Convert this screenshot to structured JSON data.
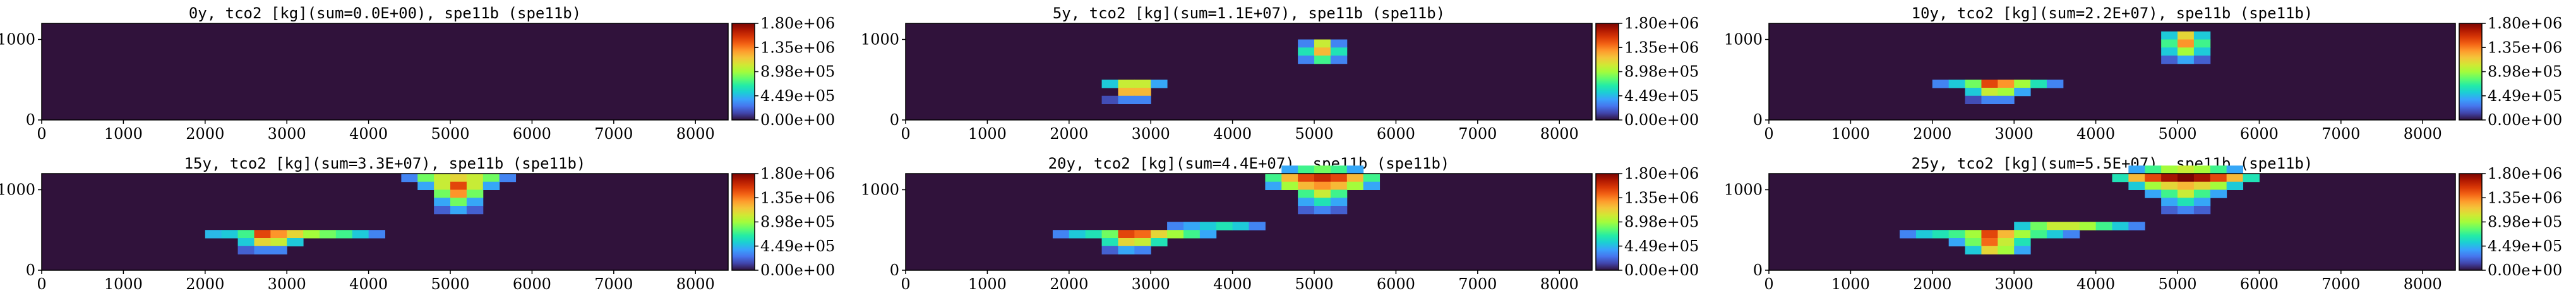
{
  "figure": {
    "colorbar": {
      "colormap": "turbo",
      "vmin": 0,
      "vmax": 1800000,
      "tick_labels": [
        "0.00e+00",
        "4.49e+05",
        "8.98e+05",
        "1.35e+06",
        "1.80e+06"
      ]
    },
    "x_tick_labels": [
      "0",
      "1000",
      "2000",
      "3000",
      "4000",
      "5000",
      "6000",
      "7000",
      "8000"
    ],
    "y_tick_labels": [
      "0",
      "1000"
    ],
    "background_color": "#30123b"
  },
  "chart_data": [
    {
      "type": "heatmap",
      "title": "0y, tco2 [kg](sum=0.0E+00), spe11b (spe11b)",
      "xlim": [
        0,
        8400
      ],
      "ylim": [
        0,
        1200
      ],
      "cell": [
        200,
        100
      ],
      "cells": []
    },
    {
      "type": "heatmap",
      "title": "5y, tco2 [kg](sum=1.1E+07), spe11b (spe11b)",
      "xlim": [
        0,
        8400
      ],
      "ylim": [
        0,
        1200
      ],
      "cell": [
        200,
        100
      ],
      "cells": [
        {
          "x": 2400,
          "y": 400,
          "v": 500000
        },
        {
          "x": 2600,
          "y": 400,
          "v": 1000000
        },
        {
          "x": 2800,
          "y": 400,
          "v": 1000000
        },
        {
          "x": 3000,
          "y": 400,
          "v": 400000
        },
        {
          "x": 2600,
          "y": 300,
          "v": 1200000
        },
        {
          "x": 2800,
          "y": 300,
          "v": 1200000
        },
        {
          "x": 2400,
          "y": 200,
          "v": 150000
        },
        {
          "x": 2600,
          "y": 200,
          "v": 300000
        },
        {
          "x": 2800,
          "y": 200,
          "v": 300000
        },
        {
          "x": 4800,
          "y": 900,
          "v": 300000
        },
        {
          "x": 5000,
          "y": 900,
          "v": 1000000
        },
        {
          "x": 5200,
          "y": 900,
          "v": 300000
        },
        {
          "x": 4800,
          "y": 800,
          "v": 600000
        },
        {
          "x": 5000,
          "y": 800,
          "v": 1200000
        },
        {
          "x": 5200,
          "y": 800,
          "v": 600000
        },
        {
          "x": 4800,
          "y": 700,
          "v": 300000
        },
        {
          "x": 5000,
          "y": 700,
          "v": 700000
        },
        {
          "x": 5200,
          "y": 700,
          "v": 300000
        }
      ]
    },
    {
      "type": "heatmap",
      "title": "10y, tco2 [kg](sum=2.2E+07), spe11b (spe11b)",
      "xlim": [
        0,
        8400
      ],
      "ylim": [
        0,
        1200
      ],
      "cell": [
        200,
        100
      ],
      "cells": [
        {
          "x": 2000,
          "y": 400,
          "v": 300000
        },
        {
          "x": 2200,
          "y": 400,
          "v": 500000
        },
        {
          "x": 2400,
          "y": 400,
          "v": 800000
        },
        {
          "x": 2600,
          "y": 400,
          "v": 1500000
        },
        {
          "x": 2800,
          "y": 400,
          "v": 1300000
        },
        {
          "x": 3000,
          "y": 400,
          "v": 900000
        },
        {
          "x": 3200,
          "y": 400,
          "v": 600000
        },
        {
          "x": 3400,
          "y": 400,
          "v": 300000
        },
        {
          "x": 2400,
          "y": 300,
          "v": 500000
        },
        {
          "x": 2600,
          "y": 300,
          "v": 1000000
        },
        {
          "x": 2800,
          "y": 300,
          "v": 900000
        },
        {
          "x": 3000,
          "y": 300,
          "v": 400000
        },
        {
          "x": 2400,
          "y": 200,
          "v": 150000
        },
        {
          "x": 2600,
          "y": 200,
          "v": 300000
        },
        {
          "x": 2800,
          "y": 200,
          "v": 300000
        },
        {
          "x": 4800,
          "y": 1000,
          "v": 500000
        },
        {
          "x": 5000,
          "y": 1000,
          "v": 1100000
        },
        {
          "x": 5200,
          "y": 1000,
          "v": 500000
        },
        {
          "x": 4800,
          "y": 900,
          "v": 700000
        },
        {
          "x": 5000,
          "y": 900,
          "v": 1300000
        },
        {
          "x": 5200,
          "y": 900,
          "v": 700000
        },
        {
          "x": 4800,
          "y": 800,
          "v": 500000
        },
        {
          "x": 5000,
          "y": 800,
          "v": 900000
        },
        {
          "x": 5200,
          "y": 800,
          "v": 500000
        },
        {
          "x": 4800,
          "y": 700,
          "v": 200000
        },
        {
          "x": 5000,
          "y": 700,
          "v": 400000
        },
        {
          "x": 5200,
          "y": 700,
          "v": 200000
        }
      ]
    },
    {
      "type": "heatmap",
      "title": "15y, tco2 [kg](sum=3.3E+07), spe11b (spe11b)",
      "xlim": [
        0,
        8400
      ],
      "ylim": [
        0,
        1200
      ],
      "cell": [
        200,
        100
      ],
      "cells": [
        {
          "x": 2000,
          "y": 400,
          "v": 450000
        },
        {
          "x": 2200,
          "y": 400,
          "v": 500000
        },
        {
          "x": 2400,
          "y": 400,
          "v": 700000
        },
        {
          "x": 2600,
          "y": 400,
          "v": 1500000
        },
        {
          "x": 2800,
          "y": 400,
          "v": 1300000
        },
        {
          "x": 3000,
          "y": 400,
          "v": 1100000
        },
        {
          "x": 3200,
          "y": 400,
          "v": 900000
        },
        {
          "x": 3400,
          "y": 400,
          "v": 800000
        },
        {
          "x": 3600,
          "y": 400,
          "v": 700000
        },
        {
          "x": 3800,
          "y": 400,
          "v": 500000
        },
        {
          "x": 4000,
          "y": 400,
          "v": 300000
        },
        {
          "x": 2400,
          "y": 300,
          "v": 500000
        },
        {
          "x": 2600,
          "y": 300,
          "v": 1100000
        },
        {
          "x": 2800,
          "y": 300,
          "v": 1000000
        },
        {
          "x": 3000,
          "y": 300,
          "v": 500000
        },
        {
          "x": 2400,
          "y": 200,
          "v": 200000
        },
        {
          "x": 2600,
          "y": 200,
          "v": 300000
        },
        {
          "x": 2800,
          "y": 200,
          "v": 300000
        },
        {
          "x": 4400,
          "y": 1100,
          "v": 300000
        },
        {
          "x": 4600,
          "y": 1100,
          "v": 800000
        },
        {
          "x": 4800,
          "y": 1100,
          "v": 1000000
        },
        {
          "x": 5000,
          "y": 1100,
          "v": 1100000
        },
        {
          "x": 5200,
          "y": 1100,
          "v": 1000000
        },
        {
          "x": 5400,
          "y": 1100,
          "v": 800000
        },
        {
          "x": 5600,
          "y": 1100,
          "v": 300000
        },
        {
          "x": 4600,
          "y": 1000,
          "v": 400000
        },
        {
          "x": 4800,
          "y": 1000,
          "v": 1000000
        },
        {
          "x": 5000,
          "y": 1000,
          "v": 1500000
        },
        {
          "x": 5200,
          "y": 1000,
          "v": 1000000
        },
        {
          "x": 5400,
          "y": 1000,
          "v": 400000
        },
        {
          "x": 4800,
          "y": 900,
          "v": 800000
        },
        {
          "x": 5000,
          "y": 900,
          "v": 1300000
        },
        {
          "x": 5200,
          "y": 900,
          "v": 800000
        },
        {
          "x": 4800,
          "y": 800,
          "v": 400000
        },
        {
          "x": 5000,
          "y": 800,
          "v": 800000
        },
        {
          "x": 5200,
          "y": 800,
          "v": 400000
        },
        {
          "x": 4800,
          "y": 700,
          "v": 200000
        },
        {
          "x": 5000,
          "y": 700,
          "v": 400000
        },
        {
          "x": 5200,
          "y": 700,
          "v": 200000
        }
      ]
    },
    {
      "type": "heatmap",
      "title": "20y, tco2 [kg](sum=4.4E+07), spe11b (spe11b)",
      "xlim": [
        0,
        8400
      ],
      "ylim": [
        0,
        1200
      ],
      "cell": [
        200,
        100
      ],
      "cells": [
        {
          "x": 3200,
          "y": 500,
          "v": 300000
        },
        {
          "x": 3400,
          "y": 500,
          "v": 400000
        },
        {
          "x": 3600,
          "y": 500,
          "v": 500000
        },
        {
          "x": 3800,
          "y": 500,
          "v": 600000
        },
        {
          "x": 4000,
          "y": 500,
          "v": 500000
        },
        {
          "x": 4200,
          "y": 500,
          "v": 300000
        },
        {
          "x": 1800,
          "y": 400,
          "v": 300000
        },
        {
          "x": 2000,
          "y": 400,
          "v": 500000
        },
        {
          "x": 2200,
          "y": 400,
          "v": 600000
        },
        {
          "x": 2400,
          "y": 400,
          "v": 800000
        },
        {
          "x": 2600,
          "y": 400,
          "v": 1500000
        },
        {
          "x": 2800,
          "y": 400,
          "v": 1400000
        },
        {
          "x": 3000,
          "y": 400,
          "v": 1100000
        },
        {
          "x": 3200,
          "y": 400,
          "v": 900000
        },
        {
          "x": 3400,
          "y": 400,
          "v": 700000
        },
        {
          "x": 3600,
          "y": 400,
          "v": 400000
        },
        {
          "x": 2400,
          "y": 300,
          "v": 600000
        },
        {
          "x": 2600,
          "y": 300,
          "v": 1100000
        },
        {
          "x": 2800,
          "y": 300,
          "v": 1000000
        },
        {
          "x": 3000,
          "y": 300,
          "v": 600000
        },
        {
          "x": 2400,
          "y": 200,
          "v": 200000
        },
        {
          "x": 2600,
          "y": 200,
          "v": 400000
        },
        {
          "x": 2800,
          "y": 200,
          "v": 300000
        },
        {
          "x": 4600,
          "y": 1200,
          "v": 400000
        },
        {
          "x": 4800,
          "y": 1200,
          "v": 700000
        },
        {
          "x": 5000,
          "y": 1200,
          "v": 800000
        },
        {
          "x": 5200,
          "y": 1200,
          "v": 700000
        },
        {
          "x": 5400,
          "y": 1200,
          "v": 400000
        },
        {
          "x": 4400,
          "y": 1100,
          "v": 700000
        },
        {
          "x": 4600,
          "y": 1100,
          "v": 1200000
        },
        {
          "x": 4800,
          "y": 1100,
          "v": 1500000
        },
        {
          "x": 5000,
          "y": 1100,
          "v": 1600000
        },
        {
          "x": 5200,
          "y": 1100,
          "v": 1500000
        },
        {
          "x": 5400,
          "y": 1100,
          "v": 1200000
        },
        {
          "x": 5600,
          "y": 1100,
          "v": 700000
        },
        {
          "x": 4400,
          "y": 1000,
          "v": 400000
        },
        {
          "x": 4600,
          "y": 1000,
          "v": 900000
        },
        {
          "x": 4800,
          "y": 1000,
          "v": 1200000
        },
        {
          "x": 5000,
          "y": 1000,
          "v": 1300000
        },
        {
          "x": 5200,
          "y": 1000,
          "v": 1200000
        },
        {
          "x": 5400,
          "y": 1000,
          "v": 900000
        },
        {
          "x": 5600,
          "y": 1000,
          "v": 400000
        },
        {
          "x": 4800,
          "y": 900,
          "v": 700000
        },
        {
          "x": 5000,
          "y": 900,
          "v": 1000000
        },
        {
          "x": 5200,
          "y": 900,
          "v": 700000
        },
        {
          "x": 4800,
          "y": 800,
          "v": 400000
        },
        {
          "x": 5000,
          "y": 800,
          "v": 600000
        },
        {
          "x": 5200,
          "y": 800,
          "v": 400000
        },
        {
          "x": 4800,
          "y": 700,
          "v": 200000
        },
        {
          "x": 5000,
          "y": 700,
          "v": 300000
        },
        {
          "x": 5200,
          "y": 700,
          "v": 200000
        }
      ]
    },
    {
      "type": "heatmap",
      "title": "25y, tco2 [kg](sum=5.5E+07), spe11b (spe11b)",
      "xlim": [
        0,
        8400
      ],
      "ylim": [
        0,
        1200
      ],
      "cell": [
        200,
        100
      ],
      "cells": [
        {
          "x": 3000,
          "y": 500,
          "v": 500000
        },
        {
          "x": 3200,
          "y": 500,
          "v": 800000
        },
        {
          "x": 3400,
          "y": 500,
          "v": 1000000
        },
        {
          "x": 3600,
          "y": 500,
          "v": 1000000
        },
        {
          "x": 3800,
          "y": 500,
          "v": 900000
        },
        {
          "x": 4000,
          "y": 500,
          "v": 700000
        },
        {
          "x": 4200,
          "y": 500,
          "v": 500000
        },
        {
          "x": 4400,
          "y": 500,
          "v": 300000
        },
        {
          "x": 1600,
          "y": 400,
          "v": 300000
        },
        {
          "x": 1800,
          "y": 400,
          "v": 500000
        },
        {
          "x": 2000,
          "y": 400,
          "v": 600000
        },
        {
          "x": 2200,
          "y": 400,
          "v": 700000
        },
        {
          "x": 2400,
          "y": 400,
          "v": 900000
        },
        {
          "x": 2600,
          "y": 400,
          "v": 1500000
        },
        {
          "x": 2800,
          "y": 400,
          "v": 1200000
        },
        {
          "x": 3000,
          "y": 400,
          "v": 900000
        },
        {
          "x": 3200,
          "y": 400,
          "v": 700000
        },
        {
          "x": 3400,
          "y": 400,
          "v": 500000
        },
        {
          "x": 3600,
          "y": 400,
          "v": 300000
        },
        {
          "x": 2200,
          "y": 300,
          "v": 400000
        },
        {
          "x": 2400,
          "y": 300,
          "v": 800000
        },
        {
          "x": 2600,
          "y": 300,
          "v": 1400000
        },
        {
          "x": 2800,
          "y": 300,
          "v": 1000000
        },
        {
          "x": 3000,
          "y": 300,
          "v": 600000
        },
        {
          "x": 2400,
          "y": 200,
          "v": 500000
        },
        {
          "x": 2600,
          "y": 200,
          "v": 1100000
        },
        {
          "x": 2800,
          "y": 200,
          "v": 900000
        },
        {
          "x": 3000,
          "y": 200,
          "v": 400000
        },
        {
          "x": 4400,
          "y": 1200,
          "v": 400000
        },
        {
          "x": 4600,
          "y": 1200,
          "v": 700000
        },
        {
          "x": 4800,
          "y": 1200,
          "v": 900000
        },
        {
          "x": 5000,
          "y": 1200,
          "v": 1000000
        },
        {
          "x": 5200,
          "y": 1200,
          "v": 900000
        },
        {
          "x": 5400,
          "y": 1200,
          "v": 700000
        },
        {
          "x": 5600,
          "y": 1200,
          "v": 400000
        },
        {
          "x": 4200,
          "y": 1100,
          "v": 600000
        },
        {
          "x": 4400,
          "y": 1100,
          "v": 1200000
        },
        {
          "x": 4600,
          "y": 1100,
          "v": 1500000
        },
        {
          "x": 4800,
          "y": 1100,
          "v": 1700000
        },
        {
          "x": 5000,
          "y": 1100,
          "v": 1800000
        },
        {
          "x": 5200,
          "y": 1100,
          "v": 1700000
        },
        {
          "x": 5400,
          "y": 1100,
          "v": 1500000
        },
        {
          "x": 5600,
          "y": 1100,
          "v": 1200000
        },
        {
          "x": 5800,
          "y": 1100,
          "v": 600000
        },
        {
          "x": 4400,
          "y": 1000,
          "v": 500000
        },
        {
          "x": 4600,
          "y": 1000,
          "v": 900000
        },
        {
          "x": 4800,
          "y": 1000,
          "v": 1100000
        },
        {
          "x": 5000,
          "y": 1000,
          "v": 1200000
        },
        {
          "x": 5200,
          "y": 1000,
          "v": 1100000
        },
        {
          "x": 5400,
          "y": 1000,
          "v": 900000
        },
        {
          "x": 5600,
          "y": 1000,
          "v": 500000
        },
        {
          "x": 4600,
          "y": 900,
          "v": 400000
        },
        {
          "x": 4800,
          "y": 900,
          "v": 700000
        },
        {
          "x": 5000,
          "y": 900,
          "v": 1000000
        },
        {
          "x": 5200,
          "y": 900,
          "v": 700000
        },
        {
          "x": 5400,
          "y": 900,
          "v": 400000
        },
        {
          "x": 4800,
          "y": 800,
          "v": 400000
        },
        {
          "x": 5000,
          "y": 800,
          "v": 600000
        },
        {
          "x": 5200,
          "y": 800,
          "v": 400000
        },
        {
          "x": 4800,
          "y": 700,
          "v": 200000
        },
        {
          "x": 5000,
          "y": 700,
          "v": 300000
        },
        {
          "x": 5200,
          "y": 700,
          "v": 200000
        }
      ]
    }
  ]
}
